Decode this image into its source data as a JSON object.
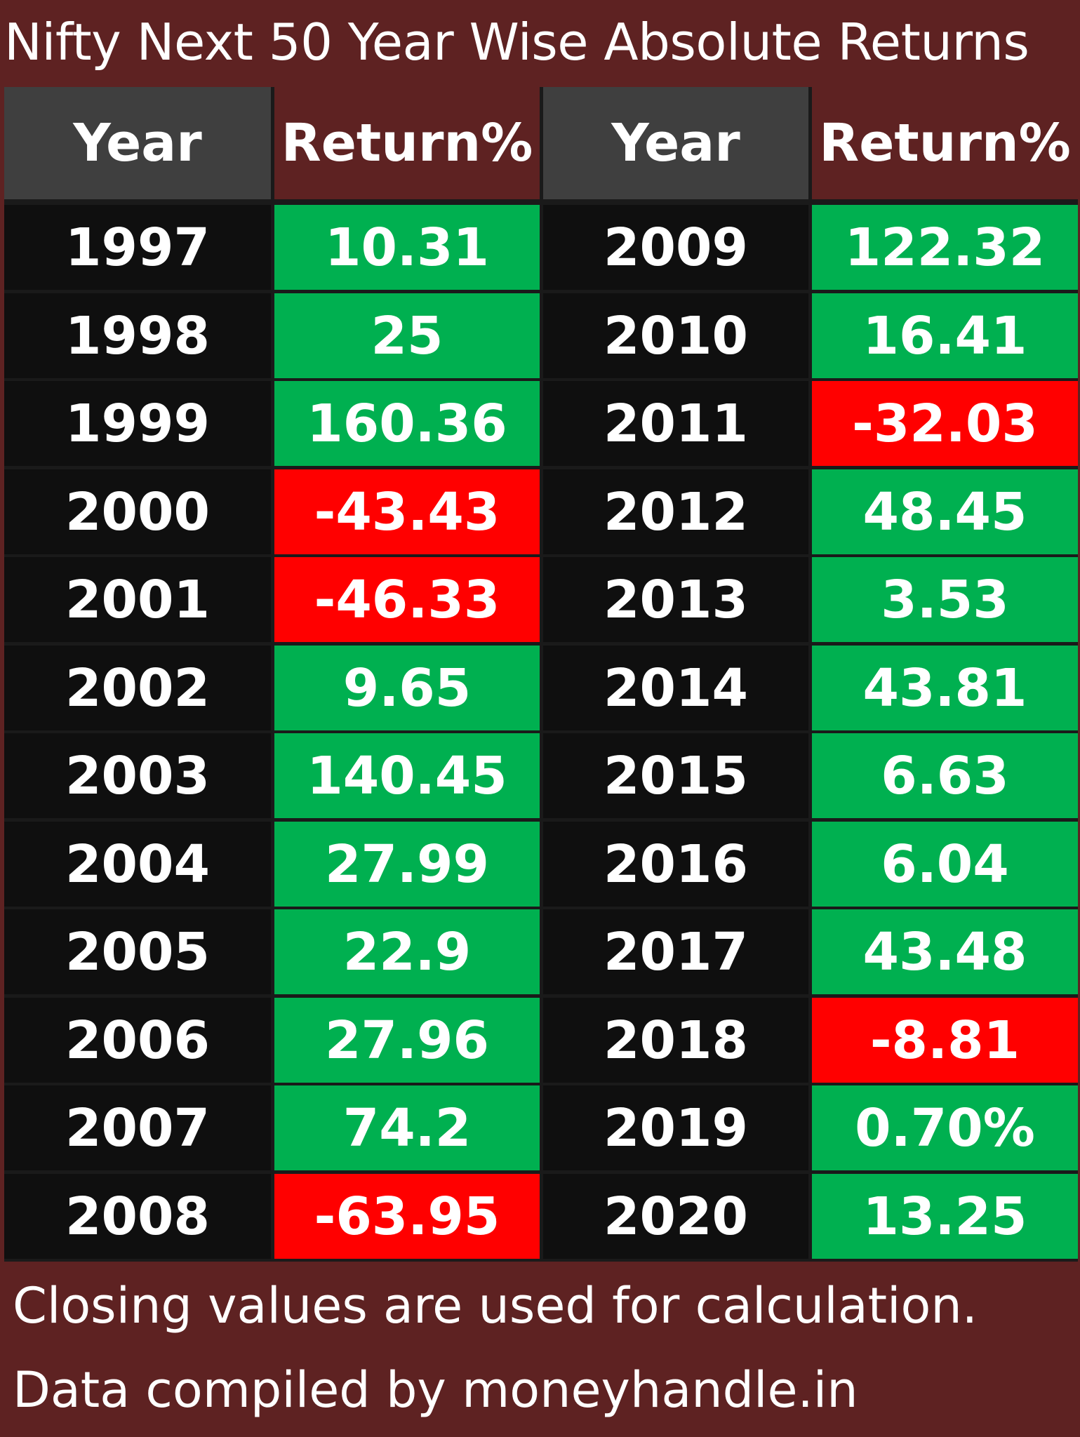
{
  "title": "Nifty Next 50 Year Wise Absolute Returns",
  "headers": {
    "year": "Year",
    "return": "Return%"
  },
  "colors": {
    "background": "#5e2222",
    "header_year": "#3f3f3f",
    "positive": "#00b050",
    "negative": "#ff0000",
    "year_cell": "#0f0f0f"
  },
  "chart_data": {
    "type": "table",
    "title": "Nifty Next 50 Year Wise Absolute Returns",
    "columns": [
      "Year",
      "Return%",
      "Year",
      "Return%"
    ],
    "rows": [
      {
        "year": "1997",
        "return": "10.31"
      },
      {
        "year": "1998",
        "return": "25"
      },
      {
        "year": "1999",
        "return": "160.36"
      },
      {
        "year": "2000",
        "return": "-43.43"
      },
      {
        "year": "2001",
        "return": "-46.33"
      },
      {
        "year": "2002",
        "return": "9.65"
      },
      {
        "year": "2003",
        "return": "140.45"
      },
      {
        "year": "2004",
        "return": "27.99"
      },
      {
        "year": "2005",
        "return": "22.9"
      },
      {
        "year": "2006",
        "return": "27.96"
      },
      {
        "year": "2007",
        "return": "74.2"
      },
      {
        "year": "2008",
        "return": "-63.95"
      },
      {
        "year": "2009",
        "return": "122.32"
      },
      {
        "year": "2010",
        "return": "16.41"
      },
      {
        "year": "2011",
        "return": "-32.03"
      },
      {
        "year": "2012",
        "return": "48.45"
      },
      {
        "year": "2013",
        "return": "3.53"
      },
      {
        "year": "2014",
        "return": "43.81"
      },
      {
        "year": "2015",
        "return": "6.63"
      },
      {
        "year": "2016",
        "return": "6.04"
      },
      {
        "year": "2017",
        "return": "43.48"
      },
      {
        "year": "2018",
        "return": "-8.81"
      },
      {
        "year": "2019",
        "return": "0.70%"
      },
      {
        "year": "2020",
        "return": "13.25"
      }
    ]
  },
  "footer": {
    "line1": "Closing values are used for calculation.",
    "line2": "Data compiled by moneyhandle.in"
  }
}
